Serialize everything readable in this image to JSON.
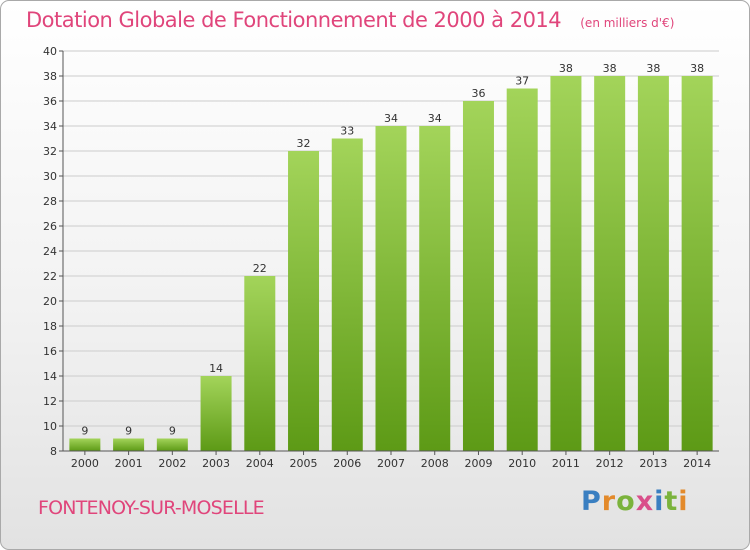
{
  "header": {
    "title": "Dotation Globale de Fonctionnement de 2000 à 2014",
    "unit": "(en milliers d'€)"
  },
  "footer": {
    "commune": "FONTENOY-SUR-MOSELLE",
    "logo": {
      "letters": [
        "P",
        "r",
        "o",
        "x",
        "i",
        "t",
        "i"
      ],
      "colors": [
        "#3a7fc1",
        "#e38a2b",
        "#7bb33c",
        "#d94f8a",
        "#3a7fc1",
        "#7bb33c",
        "#e38a2b"
      ]
    }
  },
  "colors": {
    "bar_top": "#a3d45a",
    "bar_bottom": "#5d9a16",
    "accent": "#e0457b"
  },
  "chart_data": {
    "type": "bar",
    "title": "Dotation Globale de Fonctionnement de 2000 à 2014",
    "categories": [
      "2000",
      "2001",
      "2002",
      "2003",
      "2004",
      "2005",
      "2006",
      "2007",
      "2008",
      "2009",
      "2010",
      "2011",
      "2012",
      "2013",
      "2014"
    ],
    "values": [
      9,
      9,
      9,
      14,
      22,
      32,
      33,
      34,
      34,
      36,
      37,
      38,
      38,
      38,
      38
    ],
    "ylim": [
      8,
      40
    ],
    "yticks": [
      8,
      10,
      12,
      14,
      16,
      18,
      20,
      22,
      24,
      26,
      28,
      30,
      32,
      34,
      36,
      38,
      40
    ],
    "xlabel": "",
    "ylabel": "",
    "grid": true,
    "legend": "none"
  }
}
